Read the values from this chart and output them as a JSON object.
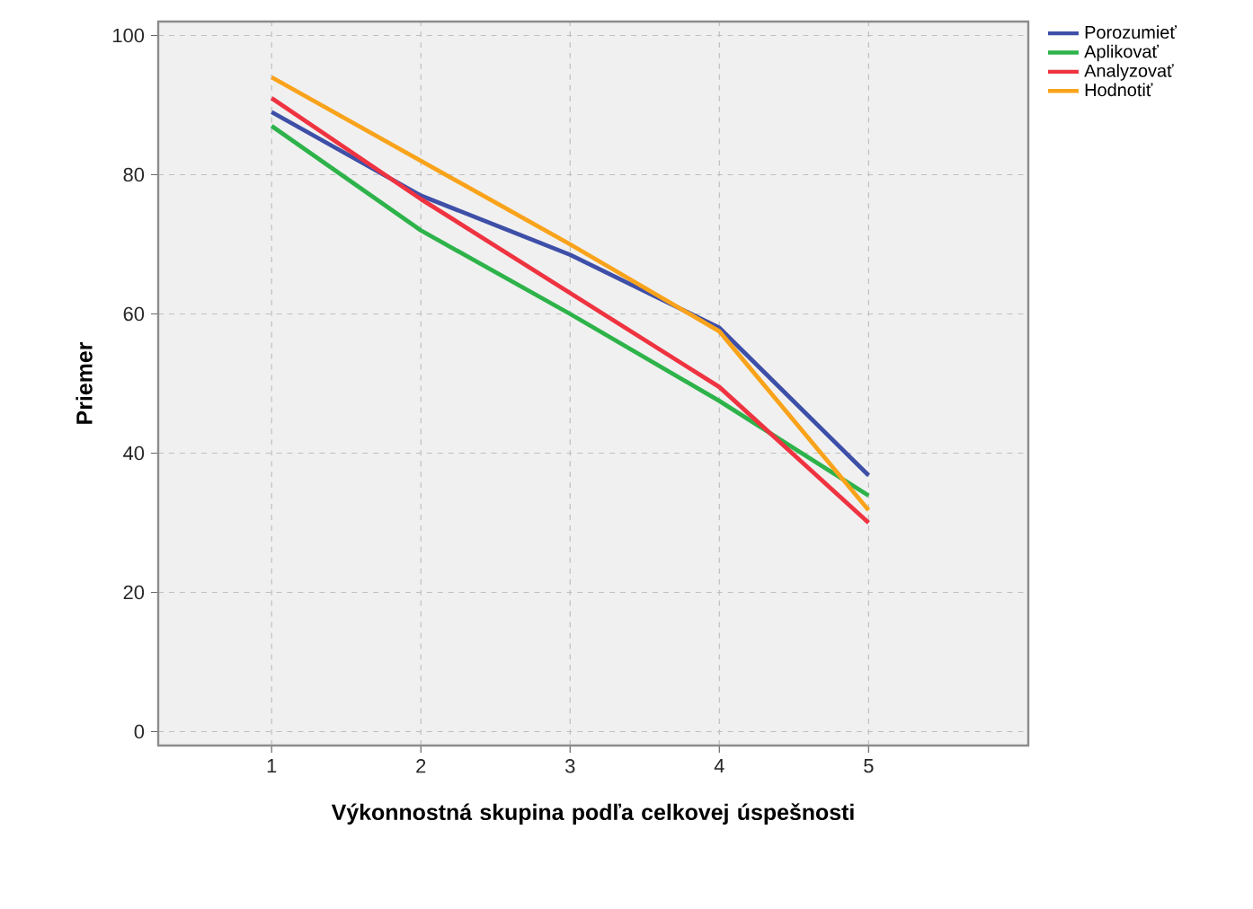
{
  "chart_data": {
    "type": "line",
    "xlabel": "Výkonnostná skupina podľa celkovej úspešnosti",
    "ylabel": "Priemer",
    "categories": [
      "1",
      "2",
      "3",
      "4",
      "5"
    ],
    "series": [
      {
        "name": "Porozumieť",
        "color": "#3e4fa8",
        "values": [
          89,
          77,
          68.5,
          58,
          36.8
        ]
      },
      {
        "name": "Aplikovať",
        "color": "#2db34a",
        "values": [
          87,
          72,
          60,
          47.5,
          33.9
        ]
      },
      {
        "name": "Analyzovať",
        "color": "#ef3340",
        "values": [
          91,
          76.5,
          63,
          49.5,
          30
        ]
      },
      {
        "name": "Hodnotiť",
        "color": "#f9a31b",
        "values": [
          94,
          82,
          70,
          57.5,
          31.8
        ]
      }
    ],
    "ylim": [
      -2,
      102
    ],
    "yticks": [
      0,
      20,
      40,
      60,
      80,
      100
    ],
    "grid": true,
    "legend": "top right",
    "marker": "none",
    "line_style": "solid"
  }
}
